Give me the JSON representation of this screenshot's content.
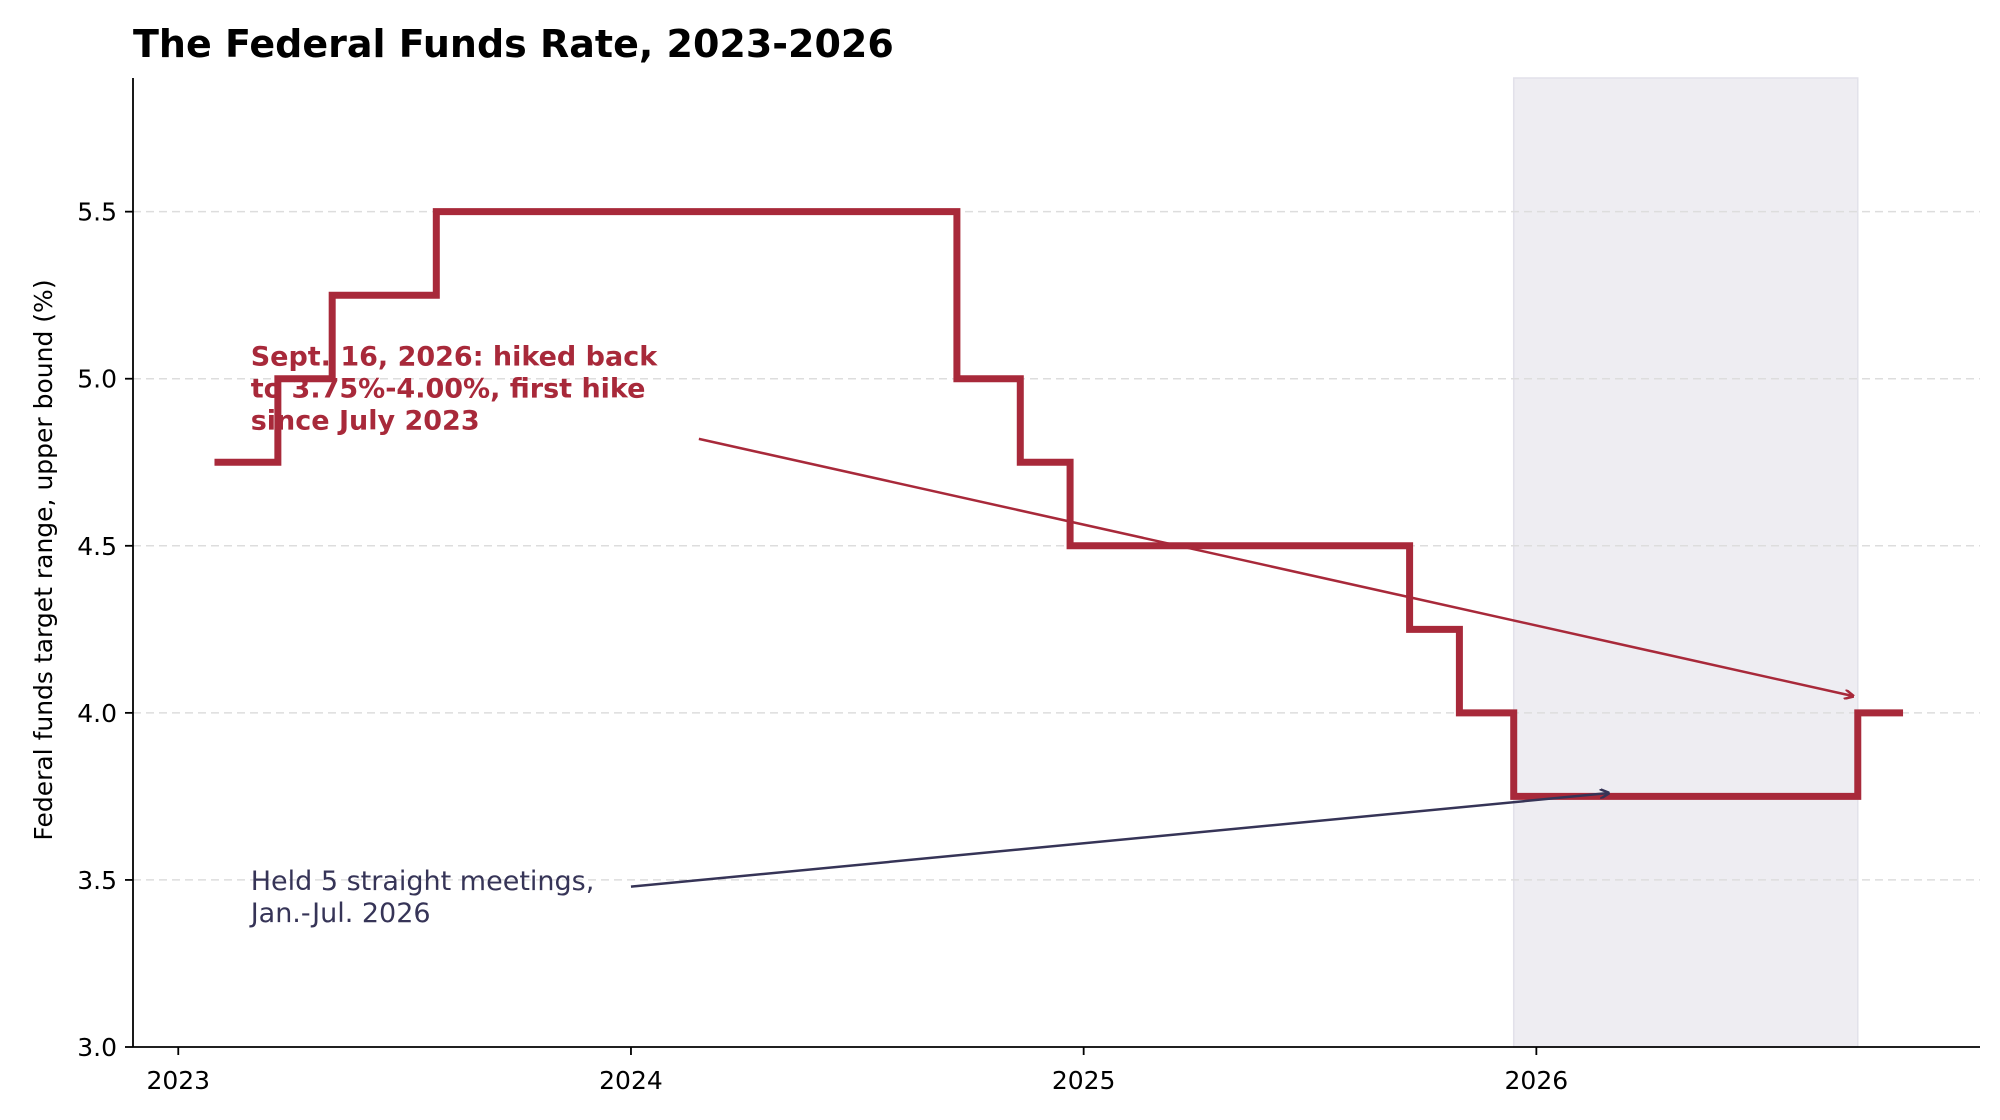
{
  "chart_data": {
    "type": "line",
    "title": "The Federal Funds Rate, 2023-2026",
    "xlabel": "",
    "ylabel": "Federal funds target range, upper bound (%)",
    "xlim": [
      2022.9,
      2026.98
    ],
    "ylim": [
      3.0,
      5.9
    ],
    "xticks": [
      2023,
      2024,
      2025,
      2026
    ],
    "xtick_labels": [
      "2023",
      "2024",
      "2025",
      "2026"
    ],
    "yticks": [
      3.0,
      3.5,
      4.0,
      4.5,
      5.0,
      5.5
    ],
    "ytick_labels": [
      "3.0",
      "3.5",
      "4.0",
      "4.5",
      "5.0",
      "5.5"
    ],
    "grid": {
      "y": true,
      "x": false,
      "style": "dashed"
    },
    "line_style": "step",
    "series": [
      {
        "color": "#A8293A",
        "x": [
          2023.08,
          2023.22,
          2023.34,
          2023.57,
          2024.72,
          2024.86,
          2024.97,
          2025.72,
          2025.83,
          2025.95,
          2026.71,
          2026.81
        ],
        "y": [
          4.75,
          5.0,
          5.25,
          5.5,
          5.0,
          4.75,
          4.5,
          4.25,
          4.0,
          3.75,
          4.0,
          4.0
        ]
      }
    ],
    "shaded_region": {
      "x_start": 2025.95,
      "x_end": 2026.71,
      "color": "#EEEDF2"
    },
    "annotations": [
      {
        "id": "hike",
        "lines": [
          "Sept. 16, 2026: hiked back",
          "to 3.75%-4.00%, first hike",
          "since July 2023"
        ],
        "text_x": 2023.16,
        "text_y": 5.04,
        "arrow_from": [
          2024.15,
          4.82
        ],
        "arrow_to": [
          2026.7,
          4.05
        ],
        "color": "#A8293A",
        "bold": true
      },
      {
        "id": "held",
        "lines": [
          "Held 5 straight meetings,",
          "Jan.-Jul. 2026"
        ],
        "text_x": 2023.16,
        "text_y": 3.47,
        "arrow_from": [
          2024.0,
          3.48
        ],
        "arrow_to": [
          2026.16,
          3.76
        ],
        "color": "#363457",
        "bold": false
      }
    ]
  }
}
